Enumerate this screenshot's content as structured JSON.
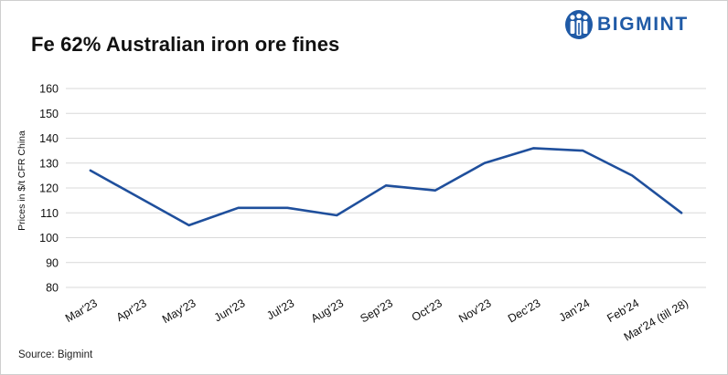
{
  "header": {
    "title": "Fe 62% Australian iron ore fines",
    "brand": "BIGMINT",
    "brand_color": "#1f5aa6",
    "brand_icon": "people-group-logo-icon"
  },
  "footer": {
    "source": "Source: Bigmint"
  },
  "chart_data": {
    "type": "line",
    "title": "Fe 62% Australian iron ore fines",
    "xlabel": "",
    "ylabel": "Prices in $/t CFR China",
    "ylim": [
      80,
      160
    ],
    "yticks": [
      "80",
      "90",
      "100",
      "110",
      "120",
      "130",
      "140",
      "150",
      "160"
    ],
    "grid": true,
    "legend": "none",
    "categories": [
      "Mar'23",
      "Apr'23",
      "May'23",
      "Jun'23",
      "Jul'23",
      "Aug'23",
      "Sep'23",
      "Oct'23",
      "Nov'23",
      "Dec'23",
      "Jan'24",
      "Feb'24",
      "Mar'24 (till 28)"
    ],
    "series": [
      {
        "color": "#1f4f9c",
        "values": [
          127,
          116,
          105,
          112,
          112,
          109,
          121,
          119,
          130,
          136,
          135,
          125,
          110
        ]
      }
    ]
  }
}
